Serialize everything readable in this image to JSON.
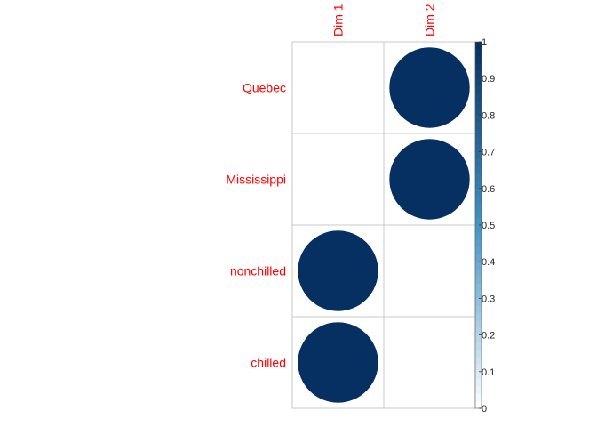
{
  "chart_data": {
    "type": "heatmap",
    "style": "corrplot-circle",
    "columns": [
      "Dim 1",
      "Dim 2"
    ],
    "rows": [
      "Quebec",
      "Mississippi",
      "nonchilled",
      "chilled"
    ],
    "values": [
      [
        0,
        1
      ],
      [
        0,
        1
      ],
      [
        1,
        0
      ],
      [
        1,
        0
      ]
    ],
    "colorbar": {
      "ticks": [
        "0",
        "0.1",
        "0.2",
        "0.3",
        "0.4",
        "0.5",
        "0.6",
        "0.7",
        "0.8",
        "0.9",
        "1"
      ],
      "range": [
        0,
        1
      ],
      "low_color": "#ffffff",
      "mid_color": "#4393c3",
      "high_color": "#053061"
    },
    "label_color": "#ff0000",
    "grid": true
  }
}
